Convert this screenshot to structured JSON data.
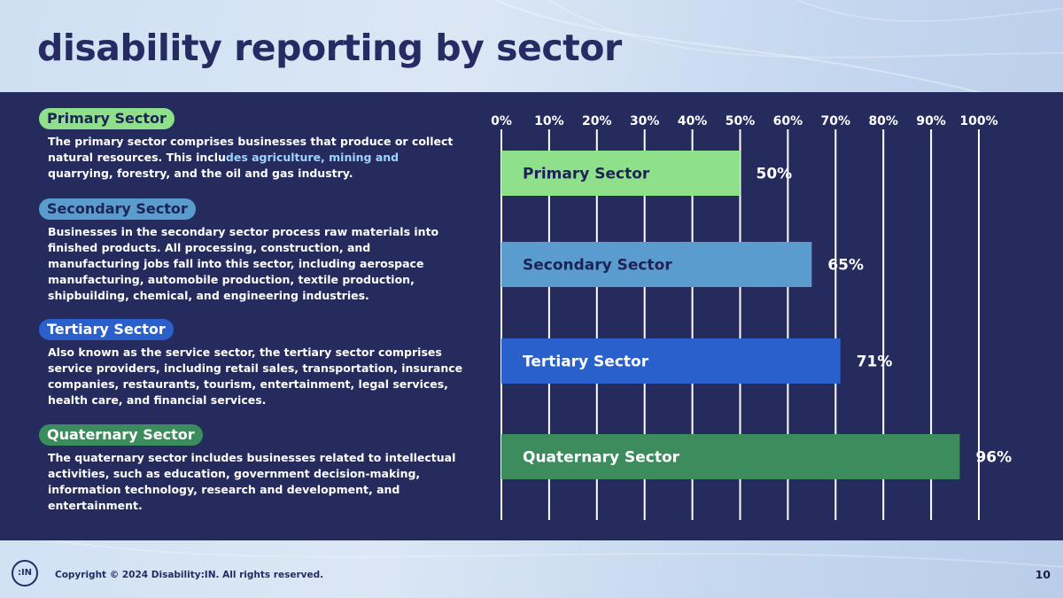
{
  "title": "disability reporting by sector",
  "sectors": [
    {
      "name": "Primary Sector",
      "color": "#8fe08a",
      "text_color": "#1d2354",
      "desc_lead": "The primary sector comprises businesses that produce or collect natural resources. This inclu",
      "desc_highlight": "des agriculture, mining and",
      "desc_tail": " quarrying, forestry, and the oil and gas industry."
    },
    {
      "name": "Secondary Sector",
      "color": "#5b9ccf",
      "text_color": "#1d2354",
      "desc": "Businesses in the secondary sector process raw materials into finished products. All processing, construction, and manufacturing jobs fall into this sector, including aerospace manufacturing, automobile production, textile production, shipbuilding, chemical, and engineering industries."
    },
    {
      "name": "Tertiary Sector",
      "color": "#2a60cc",
      "text_color": "#ffffff",
      "desc": "Also known as the service sector, the tertiary sector comprises service providers, including retail sales, transportation, insurance companies, restaurants, tourism, entertainment, legal services, health care, and financial services."
    },
    {
      "name": "Quaternary Sector",
      "color": "#3d8c5d",
      "text_color": "#ffffff",
      "desc": "The quaternary sector includes businesses related to intellectual activities, such as education, government decision-making, information technology, research and development, and entertainment."
    }
  ],
  "chart_data": {
    "type": "bar",
    "orientation": "horizontal",
    "categories": [
      "Primary Sector",
      "Secondary Sector",
      "Tertiary Sector",
      "Quaternary Sector"
    ],
    "values": [
      50,
      65,
      71,
      96
    ],
    "value_labels": [
      "50%",
      "65%",
      "71%",
      "96%"
    ],
    "colors": [
      "#8fe08a",
      "#5b9ccf",
      "#2a60cc",
      "#3d8c5d"
    ],
    "label_colors": [
      "#1d2354",
      "#1d2354",
      "#ffffff",
      "#ffffff"
    ],
    "xlim": [
      0,
      100
    ],
    "ticks": [
      0,
      10,
      20,
      30,
      40,
      50,
      60,
      70,
      80,
      90,
      100
    ],
    "tick_labels": [
      "0%",
      "10%",
      "20%",
      "30%",
      "40%",
      "50%",
      "60%",
      "70%",
      "80%",
      "90%",
      "100%"
    ],
    "axis_position": "top",
    "grid": true
  },
  "footer": {
    "logo_text": ":IN",
    "copyright": "Copyright © 2024 Disability:IN.  All rights reserved.",
    "page_number": "10"
  }
}
